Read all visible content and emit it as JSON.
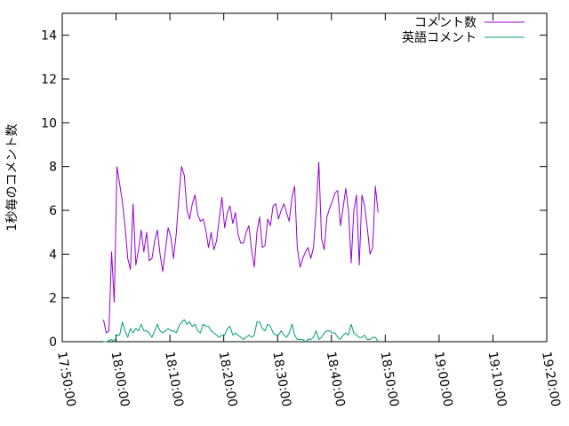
{
  "chart_data": {
    "type": "line",
    "title": "",
    "xlabel": "",
    "ylabel": "1秒毎のコメント数",
    "xlim": [
      "17:50:00",
      "19:20:00"
    ],
    "ylim": [
      0,
      15
    ],
    "x_ticks": [
      "17:50:00",
      "18:00:00",
      "18:10:00",
      "18:20:00",
      "18:30:00",
      "18:40:00",
      "18:50:00",
      "19:00:00",
      "19:10:00",
      "19:20:00"
    ],
    "y_ticks": [
      0,
      2,
      4,
      6,
      8,
      10,
      12,
      14
    ],
    "grid": false,
    "legend_position": "top-right",
    "series": [
      {
        "name": "コメント数",
        "color": "#9400d3",
        "points": [
          [
            "17:57:40",
            1.0
          ],
          [
            "17:58:10",
            0.4
          ],
          [
            "17:58:40",
            0.5
          ],
          [
            "17:59:10",
            4.1
          ],
          [
            "17:59:40",
            1.8
          ],
          [
            "18:00:10",
            8.0
          ],
          [
            "18:00:40",
            7.2
          ],
          [
            "18:01:10",
            6.4
          ],
          [
            "18:01:40",
            5.3
          ],
          [
            "18:02:10",
            3.8
          ],
          [
            "18:02:40",
            3.3
          ],
          [
            "18:03:10",
            6.3
          ],
          [
            "18:03:40",
            3.5
          ],
          [
            "18:04:10",
            4.2
          ],
          [
            "18:04:40",
            5.1
          ],
          [
            "18:05:10",
            4.1
          ],
          [
            "18:05:40",
            5.0
          ],
          [
            "18:06:10",
            3.7
          ],
          [
            "18:06:40",
            3.8
          ],
          [
            "18:07:10",
            4.6
          ],
          [
            "18:07:40",
            5.1
          ],
          [
            "18:08:10",
            4.0
          ],
          [
            "18:08:40",
            3.2
          ],
          [
            "18:09:10",
            4.2
          ],
          [
            "18:09:40",
            5.2
          ],
          [
            "18:10:10",
            4.8
          ],
          [
            "18:10:40",
            3.8
          ],
          [
            "18:11:10",
            4.9
          ],
          [
            "18:11:40",
            6.6
          ],
          [
            "18:12:10",
            8.0
          ],
          [
            "18:12:40",
            7.6
          ],
          [
            "18:13:10",
            6.0
          ],
          [
            "18:13:40",
            5.6
          ],
          [
            "18:14:10",
            6.3
          ],
          [
            "18:14:40",
            6.7
          ],
          [
            "18:15:10",
            5.8
          ],
          [
            "18:15:40",
            5.5
          ],
          [
            "18:16:10",
            5.6
          ],
          [
            "18:16:40",
            5.1
          ],
          [
            "18:17:10",
            4.3
          ],
          [
            "18:17:40",
            5.0
          ],
          [
            "18:18:10",
            4.2
          ],
          [
            "18:18:40",
            4.6
          ],
          [
            "18:19:10",
            5.6
          ],
          [
            "18:19:40",
            6.6
          ],
          [
            "18:20:10",
            5.2
          ],
          [
            "18:20:40",
            5.9
          ],
          [
            "18:21:10",
            6.2
          ],
          [
            "18:21:40",
            5.4
          ],
          [
            "18:22:10",
            5.9
          ],
          [
            "18:22:40",
            4.9
          ],
          [
            "18:23:10",
            4.5
          ],
          [
            "18:23:40",
            4.5
          ],
          [
            "18:24:10",
            5.0
          ],
          [
            "18:24:40",
            5.3
          ],
          [
            "18:25:10",
            4.2
          ],
          [
            "18:25:40",
            3.4
          ],
          [
            "18:26:10",
            5.0
          ],
          [
            "18:26:40",
            5.7
          ],
          [
            "18:27:10",
            4.3
          ],
          [
            "18:27:40",
            4.4
          ],
          [
            "18:28:10",
            5.6
          ],
          [
            "18:28:40",
            5.3
          ],
          [
            "18:29:10",
            6.2
          ],
          [
            "18:29:40",
            6.3
          ],
          [
            "18:30:10",
            5.6
          ],
          [
            "18:30:40",
            6.0
          ],
          [
            "18:31:10",
            6.3
          ],
          [
            "18:31:40",
            5.9
          ],
          [
            "18:32:10",
            5.5
          ],
          [
            "18:32:40",
            6.6
          ],
          [
            "18:33:10",
            7.1
          ],
          [
            "18:33:40",
            4.3
          ],
          [
            "18:34:10",
            3.4
          ],
          [
            "18:34:40",
            3.8
          ],
          [
            "18:35:10",
            4.1
          ],
          [
            "18:35:40",
            4.3
          ],
          [
            "18:36:10",
            3.8
          ],
          [
            "18:36:40",
            4.3
          ],
          [
            "18:37:10",
            6.0
          ],
          [
            "18:37:40",
            8.2
          ],
          [
            "18:38:10",
            4.7
          ],
          [
            "18:38:40",
            4.2
          ],
          [
            "18:39:10",
            5.7
          ],
          [
            "18:39:40",
            6.1
          ],
          [
            "18:40:10",
            6.4
          ],
          [
            "18:40:40",
            6.8
          ],
          [
            "18:41:10",
            6.9
          ],
          [
            "18:41:40",
            5.3
          ],
          [
            "18:42:10",
            6.1
          ],
          [
            "18:42:40",
            7.0
          ],
          [
            "18:43:10",
            6.0
          ],
          [
            "18:43:40",
            3.6
          ],
          [
            "18:44:10",
            6.0
          ],
          [
            "18:44:40",
            6.7
          ],
          [
            "18:45:10",
            3.5
          ],
          [
            "18:45:40",
            6.7
          ],
          [
            "18:46:10",
            6.2
          ],
          [
            "18:46:40",
            5.2
          ],
          [
            "18:47:10",
            4.0
          ],
          [
            "18:47:40",
            4.3
          ],
          [
            "18:48:10",
            7.1
          ],
          [
            "18:48:40",
            5.9
          ]
        ]
      },
      {
        "name": "英語コメント",
        "color": "#009e73",
        "points": [
          [
            "17:57:40",
            0.0
          ],
          [
            "17:58:10",
            0.0
          ],
          [
            "17:58:40",
            0.05
          ],
          [
            "17:59:10",
            0.1
          ],
          [
            "17:59:40",
            0.0
          ],
          [
            "18:00:10",
            0.3
          ],
          [
            "18:00:40",
            0.3
          ],
          [
            "18:01:10",
            0.9
          ],
          [
            "18:01:40",
            0.5
          ],
          [
            "18:02:10",
            0.2
          ],
          [
            "18:02:40",
            0.6
          ],
          [
            "18:03:10",
            0.4
          ],
          [
            "18:03:40",
            0.6
          ],
          [
            "18:04:10",
            0.5
          ],
          [
            "18:04:40",
            0.8
          ],
          [
            "18:05:10",
            0.5
          ],
          [
            "18:05:40",
            0.5
          ],
          [
            "18:06:10",
            0.4
          ],
          [
            "18:06:40",
            0.2
          ],
          [
            "18:07:10",
            0.5
          ],
          [
            "18:07:40",
            0.8
          ],
          [
            "18:08:10",
            0.5
          ],
          [
            "18:08:40",
            0.4
          ],
          [
            "18:09:10",
            0.5
          ],
          [
            "18:09:40",
            0.6
          ],
          [
            "18:10:10",
            0.5
          ],
          [
            "18:10:40",
            0.5
          ],
          [
            "18:11:10",
            0.4
          ],
          [
            "18:11:40",
            0.7
          ],
          [
            "18:12:10",
            0.9
          ],
          [
            "18:12:40",
            1.0
          ],
          [
            "18:13:10",
            0.8
          ],
          [
            "18:13:40",
            0.9
          ],
          [
            "18:14:10",
            0.7
          ],
          [
            "18:14:40",
            0.8
          ],
          [
            "18:15:10",
            0.5
          ],
          [
            "18:15:40",
            0.4
          ],
          [
            "18:16:10",
            0.8
          ],
          [
            "18:16:40",
            0.7
          ],
          [
            "18:17:10",
            0.7
          ],
          [
            "18:17:40",
            0.5
          ],
          [
            "18:18:10",
            0.4
          ],
          [
            "18:18:40",
            0.3
          ],
          [
            "18:19:10",
            0.2
          ],
          [
            "18:19:40",
            0.3
          ],
          [
            "18:20:10",
            0.3
          ],
          [
            "18:20:40",
            0.6
          ],
          [
            "18:21:10",
            0.7
          ],
          [
            "18:21:40",
            0.3
          ],
          [
            "18:22:10",
            0.4
          ],
          [
            "18:22:40",
            0.3
          ],
          [
            "18:23:10",
            0.2
          ],
          [
            "18:23:40",
            0.1
          ],
          [
            "18:24:10",
            0.2
          ],
          [
            "18:24:40",
            0.3
          ],
          [
            "18:25:10",
            0.2
          ],
          [
            "18:25:40",
            0.3
          ],
          [
            "18:26:10",
            0.9
          ],
          [
            "18:26:40",
            0.9
          ],
          [
            "18:27:10",
            0.6
          ],
          [
            "18:27:40",
            0.5
          ],
          [
            "18:28:10",
            0.8
          ],
          [
            "18:28:40",
            0.7
          ],
          [
            "18:29:10",
            0.4
          ],
          [
            "18:29:40",
            0.3
          ],
          [
            "18:30:10",
            0.3
          ],
          [
            "18:30:40",
            0.5
          ],
          [
            "18:31:10",
            0.3
          ],
          [
            "18:31:40",
            0.2
          ],
          [
            "18:32:10",
            0.4
          ],
          [
            "18:32:40",
            0.8
          ],
          [
            "18:33:10",
            0.3
          ],
          [
            "18:33:40",
            0.1
          ],
          [
            "18:34:10",
            0.1
          ],
          [
            "18:34:40",
            0.1
          ],
          [
            "18:35:10",
            0.0
          ],
          [
            "18:35:40",
            0.1
          ],
          [
            "18:36:10",
            0.1
          ],
          [
            "18:36:40",
            0.2
          ],
          [
            "18:37:10",
            0.5
          ],
          [
            "18:37:40",
            0.1
          ],
          [
            "18:38:10",
            0.2
          ],
          [
            "18:38:40",
            0.4
          ],
          [
            "18:39:10",
            0.5
          ],
          [
            "18:39:40",
            0.5
          ],
          [
            "18:40:10",
            0.4
          ],
          [
            "18:40:40",
            0.4
          ],
          [
            "18:41:10",
            0.2
          ],
          [
            "18:41:40",
            0.1
          ],
          [
            "18:42:10",
            0.3
          ],
          [
            "18:42:40",
            0.4
          ],
          [
            "18:43:10",
            0.3
          ],
          [
            "18:43:40",
            0.8
          ],
          [
            "18:44:10",
            0.4
          ],
          [
            "18:44:40",
            0.3
          ],
          [
            "18:45:10",
            0.2
          ],
          [
            "18:45:40",
            0.2
          ],
          [
            "18:46:10",
            0.3
          ],
          [
            "18:46:40",
            0.1
          ],
          [
            "18:47:10",
            0.1
          ],
          [
            "18:47:40",
            0.2
          ],
          [
            "18:48:10",
            0.2
          ],
          [
            "18:48:40",
            0.0
          ]
        ]
      }
    ]
  }
}
